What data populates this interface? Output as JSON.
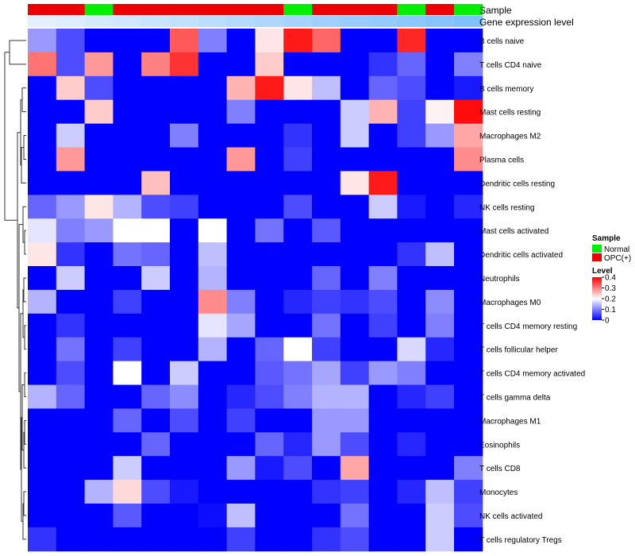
{
  "chart_data": {
    "type": "heatmap",
    "annotation_labels": {
      "sample": "Sample",
      "gene": "Gene expression level"
    },
    "sample_groups": [
      "OPC(+)",
      "OPC(+)",
      "Normal",
      "OPC(+)",
      "OPC(+)",
      "OPC(+)",
      "OPC(+)",
      "OPC(+)",
      "OPC(+)",
      "Normal",
      "OPC(+)",
      "OPC(+)",
      "OPC(+)",
      "Normal",
      "OPC(+)",
      "Normal"
    ],
    "gene_expression": [
      0.02,
      0.06,
      0.1,
      0.14,
      0.18,
      0.22,
      0.26,
      0.3,
      0.34,
      0.38,
      0.42,
      0.46,
      0.5,
      0.54,
      0.58,
      0.62
    ],
    "rows": [
      "B cells naive",
      "T cells CD4 naive",
      "B cells memory",
      "Mast cells resting",
      "Macrophages M2",
      "Plasma cells",
      "Dendritic cells resting",
      "NK cells resting",
      "Mast cells activated",
      "Dendritic cells activated",
      "Neutrophils",
      "Macrophages M0",
      "T cells CD4 memory resting",
      "T cells follicular helper",
      "T cells CD4 memory activated",
      "T cells gamma delta",
      "Macrophages M1",
      "Eosinophils",
      "T cells CD8",
      "Monocytes",
      "NK cells activated",
      "T cells regulatory  Tregs"
    ],
    "values": [
      [
        0.12,
        0.06,
        0,
        0,
        0,
        0.33,
        0.1,
        0,
        0.22,
        0.38,
        0.32,
        0,
        0,
        0.37,
        0,
        0
      ],
      [
        0.31,
        0.06,
        0.28,
        0,
        0.3,
        0.36,
        0,
        0,
        0.24,
        0,
        0,
        0,
        0.04,
        0.08,
        0,
        0.1
      ],
      [
        0,
        0.24,
        0.06,
        0,
        0,
        0,
        0,
        0.26,
        0.38,
        0.22,
        0.15,
        0,
        0.08,
        0.06,
        0,
        0.02
      ],
      [
        0,
        0,
        0.24,
        0,
        0,
        0,
        0,
        0.1,
        0,
        0,
        0,
        0.16,
        0.26,
        0.05,
        0.21,
        0.39
      ],
      [
        0,
        0.16,
        0,
        0,
        0,
        0.1,
        0,
        0,
        0,
        0.04,
        0,
        0.16,
        0,
        0.05,
        0.12,
        0.27
      ],
      [
        0,
        0.28,
        0,
        0,
        0,
        0,
        0,
        0.28,
        0,
        0.05,
        0,
        0,
        0,
        0,
        0,
        0.29
      ],
      [
        0,
        0,
        0,
        0,
        0.25,
        0,
        0,
        0,
        0,
        0,
        0,
        0.22,
        0.38,
        0,
        0,
        0
      ],
      [
        0.08,
        0.12,
        0.22,
        0.14,
        0.06,
        0.05,
        0,
        0,
        0,
        0.06,
        0,
        0,
        0.16,
        0.02,
        0,
        0.03
      ],
      [
        0.18,
        0.1,
        0.12,
        0.2,
        0.2,
        0,
        0.2,
        0,
        0.09,
        0,
        0.07,
        0,
        0,
        0,
        0,
        0
      ],
      [
        0.22,
        0.04,
        0,
        0.09,
        0.08,
        0,
        0.15,
        0,
        0,
        0,
        0,
        0,
        0,
        0.04,
        0.15,
        0
      ],
      [
        0,
        0.16,
        0,
        0,
        0.16,
        0,
        0.14,
        0,
        0,
        0,
        0.08,
        0,
        0.1,
        0,
        0,
        0
      ],
      [
        0.14,
        0,
        0,
        0.05,
        0,
        0,
        0.29,
        0.1,
        0,
        0.03,
        0.05,
        0.04,
        0.06,
        0,
        0.11,
        0
      ],
      [
        0,
        0.04,
        0,
        0,
        0,
        0,
        0.18,
        0.13,
        0,
        0,
        0.09,
        0,
        0.05,
        0,
        0.1,
        0
      ],
      [
        0,
        0.09,
        0,
        0.05,
        0,
        0,
        0.14,
        0,
        0.08,
        0.2,
        0.05,
        0,
        0,
        0.17,
        0.03,
        0
      ],
      [
        0,
        0.06,
        0,
        0.2,
        0,
        0.16,
        0,
        0,
        0.07,
        0.09,
        0.13,
        0.05,
        0.12,
        0.1,
        0,
        0
      ],
      [
        0.14,
        0.08,
        0,
        0,
        0.08,
        0.11,
        0,
        0.03,
        0.06,
        0.1,
        0.14,
        0.14,
        0,
        0.03,
        0.05,
        0
      ],
      [
        0,
        0,
        0,
        0.08,
        0,
        0.06,
        0,
        0.05,
        0,
        0,
        0.12,
        0.12,
        0,
        0,
        0,
        0
      ],
      [
        0,
        0,
        0,
        0,
        0.08,
        0,
        0,
        0,
        0.08,
        0.03,
        0.12,
        0.06,
        0,
        0.03,
        0,
        0
      ],
      [
        0,
        0,
        0,
        0.16,
        0,
        0,
        0,
        0.12,
        0.02,
        0.06,
        0,
        0.27,
        0,
        0,
        0,
        0.1
      ],
      [
        0,
        0,
        0.14,
        0.23,
        0.06,
        0.02,
        0,
        0,
        0,
        0,
        0.04,
        0.05,
        0,
        0.03,
        0.15,
        0.05
      ],
      [
        0,
        0,
        0,
        0.07,
        0,
        0,
        0.01,
        0.15,
        0,
        0,
        0,
        0.09,
        0,
        0,
        0.16,
        0.06
      ],
      [
        0.04,
        0,
        0,
        0,
        0,
        0,
        0,
        0.05,
        0,
        0,
        0.04,
        0.06,
        0,
        0,
        0.16,
        0
      ]
    ],
    "value_range": [
      0,
      0.4
    ],
    "legend": {
      "sample_title": "Sample",
      "sample_entries": [
        {
          "label": "Normal",
          "color": "#00ee00"
        },
        {
          "label": "OPC(+)",
          "color": "#ee0000"
        }
      ],
      "level_title": "Level",
      "level_ticks": [
        "0.4",
        "0.3",
        "0.2",
        "0.1",
        "0"
      ],
      "level_tick_values": [
        0.4,
        0.3,
        0.2,
        0.1,
        0
      ]
    },
    "colors": {
      "low": "#0000ff",
      "mid": "#ffffff",
      "high": "#ff0000",
      "gene_low": "#e6f3ff",
      "gene_high": "#7fc0ff",
      "normal": "#00ee00",
      "opc": "#ee0000"
    }
  }
}
